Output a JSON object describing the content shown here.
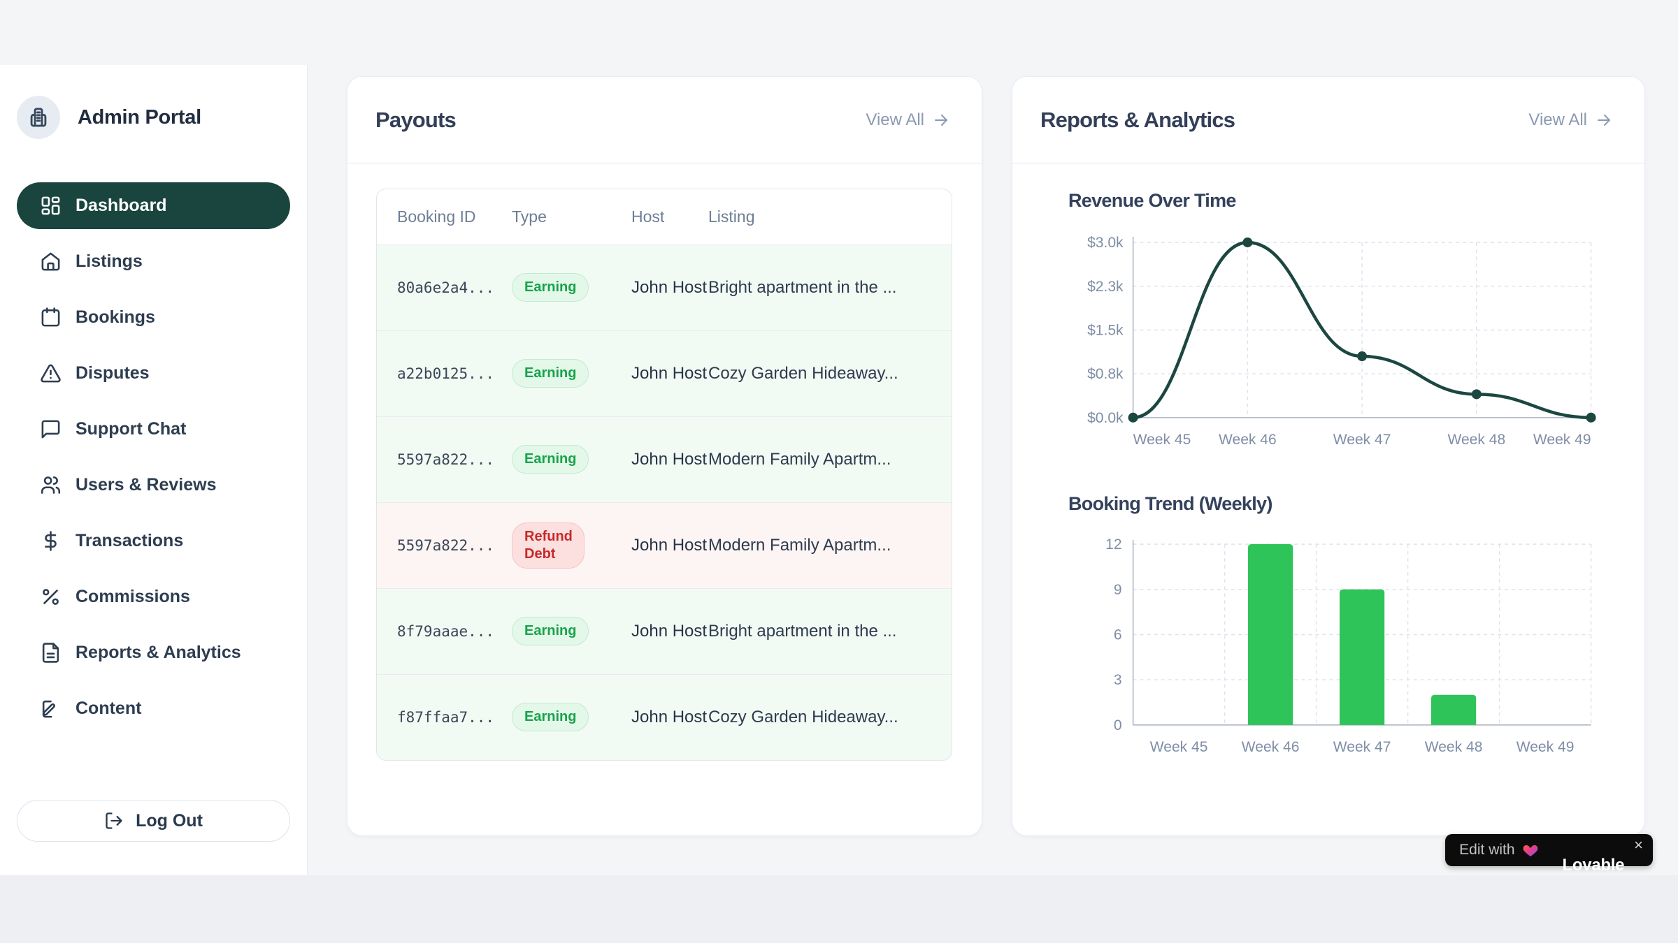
{
  "sidebar": {
    "brand": "Admin Portal",
    "items": [
      {
        "label": "Dashboard",
        "icon": "dashboard-grid",
        "active": true
      },
      {
        "label": "Listings",
        "icon": "home",
        "active": false
      },
      {
        "label": "Bookings",
        "icon": "calendar",
        "active": false
      },
      {
        "label": "Disputes",
        "icon": "alert-triangle",
        "active": false
      },
      {
        "label": "Support Chat",
        "icon": "message-square",
        "active": false
      },
      {
        "label": "Users & Reviews",
        "icon": "users",
        "active": false
      },
      {
        "label": "Transactions",
        "icon": "dollar-sign",
        "active": false
      },
      {
        "label": "Commissions",
        "icon": "percent",
        "active": false
      },
      {
        "label": "Reports & Analytics",
        "icon": "file-text",
        "active": false
      },
      {
        "label": "Content",
        "icon": "file-pen",
        "active": false
      }
    ],
    "logout_label": "Log Out"
  },
  "payouts": {
    "title": "Payouts",
    "view_all": "View All",
    "columns": [
      "Booking ID",
      "Type",
      "Host",
      "Listing"
    ],
    "rows": [
      {
        "id": "80a6e2a4...",
        "type": "Earning",
        "variant": "earning",
        "host": "John Host",
        "listing": "Bright apartment in the ..."
      },
      {
        "id": "a22b0125...",
        "type": "Earning",
        "variant": "earning",
        "host": "John Host",
        "listing": "Cozy Garden Hideaway..."
      },
      {
        "id": "5597a822...",
        "type": "Earning",
        "variant": "earning",
        "host": "John Host",
        "listing": "Modern Family Apartm..."
      },
      {
        "id": "5597a822...",
        "type": "Refund Debt",
        "variant": "refund",
        "host": "John Host",
        "listing": "Modern Family Apartm..."
      },
      {
        "id": "8f79aaae...",
        "type": "Earning",
        "variant": "earning",
        "host": "John Host",
        "listing": "Bright apartment in the ..."
      },
      {
        "id": "f87ffaa7...",
        "type": "Earning",
        "variant": "earning",
        "host": "John Host",
        "listing": "Cozy Garden Hideaway..."
      }
    ]
  },
  "reports": {
    "title": "Reports & Analytics",
    "view_all": "View All"
  },
  "chart_data": [
    {
      "type": "line",
      "title": "Revenue Over Time",
      "x": [
        "Week 45",
        "Week 46",
        "Week 47",
        "Week 48",
        "Week 49"
      ],
      "values": [
        0,
        3000,
        1050,
        400,
        0
      ],
      "ylim": [
        0,
        3000
      ],
      "ytick_labels": [
        "$0.0k",
        "$0.8k",
        "$1.5k",
        "$2.3k",
        "$3.0k"
      ],
      "line_color": "#1c4741",
      "grid": true,
      "legend": false
    },
    {
      "type": "bar",
      "title": "Booking Trend (Weekly)",
      "categories": [
        "Week 45",
        "Week 46",
        "Week 47",
        "Week 48",
        "Week 49"
      ],
      "values": [
        0,
        12,
        9,
        2,
        0
      ],
      "ylim": [
        0,
        12
      ],
      "yticks": [
        0,
        3,
        6,
        9,
        12
      ],
      "bar_color": "#2ec459",
      "grid": true,
      "legend": false
    }
  ],
  "colors": {
    "accent_teal": "#1a453f",
    "bar_green": "#2ec459",
    "earning_text": "#17a34a",
    "refund_text": "#c52a2a",
    "tick_label": "#7f8ea6",
    "gridline": "#dde4ef",
    "axis_line": "#a9b2bd"
  },
  "lovable_badge": {
    "prefix": "Edit with",
    "brand": "Lovable",
    "close": "×",
    "heart_icon": "lovable-heart"
  }
}
